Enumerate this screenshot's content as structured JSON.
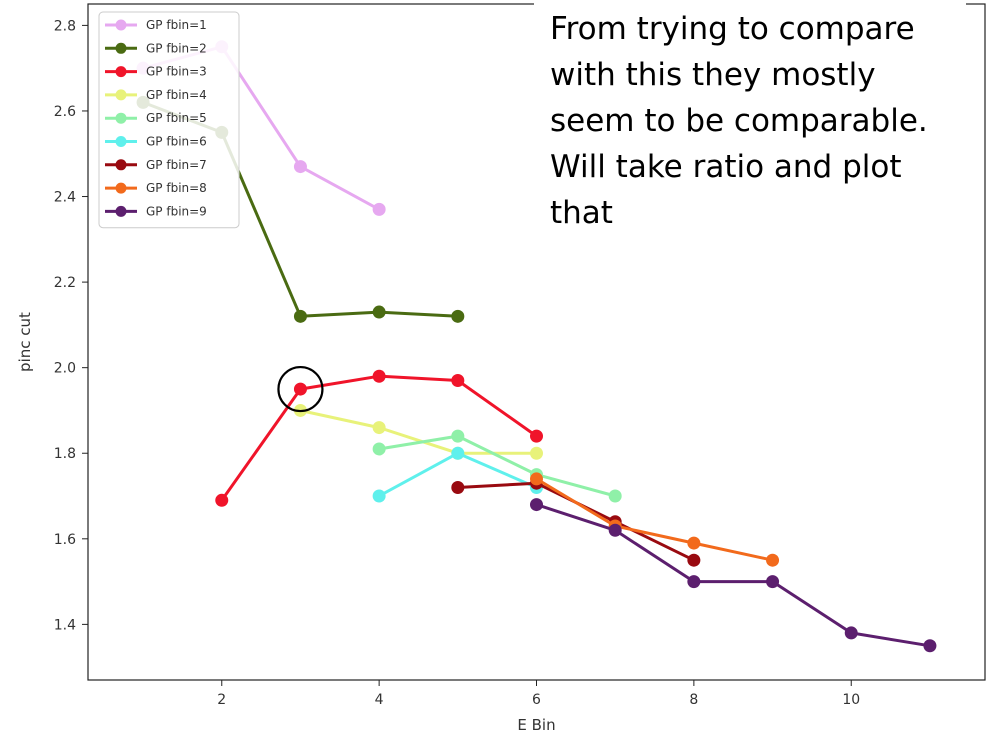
{
  "annotation": {
    "text": "From trying to compare with this they mostly seem to be comparable. Will take ratio and plot that"
  },
  "chart_data": {
    "type": "line",
    "xlabel": "E Bin",
    "ylabel": "pinc cut",
    "xlim": [
      0.3,
      11.7
    ],
    "ylim": [
      1.27,
      2.85
    ],
    "xticks": [
      2,
      4,
      6,
      8,
      10
    ],
    "yticks": [
      1.4,
      1.6,
      1.8,
      2.0,
      2.2,
      2.4,
      2.6,
      2.8
    ],
    "grid": false,
    "legend_position": "top-left",
    "highlight": {
      "shape": "circle",
      "x": 3,
      "y": 1.95
    },
    "series": [
      {
        "name": "GP fbin=1",
        "color": "#e6a8f0",
        "x": [
          1,
          2,
          3,
          4
        ],
        "y": [
          2.7,
          2.75,
          2.47,
          2.37
        ]
      },
      {
        "name": "GP fbin=2",
        "color": "#4a6b12",
        "x": [
          1,
          2,
          3,
          4,
          5
        ],
        "y": [
          2.62,
          2.55,
          2.12,
          2.13,
          2.12
        ]
      },
      {
        "name": "GP fbin=3",
        "color": "#f0142a",
        "x": [
          2,
          3,
          4,
          5,
          6
        ],
        "y": [
          1.69,
          1.95,
          1.98,
          1.97,
          1.84
        ]
      },
      {
        "name": "GP fbin=4",
        "color": "#e8f27a",
        "x": [
          3,
          4,
          5,
          6
        ],
        "y": [
          1.9,
          1.86,
          1.8,
          1.8
        ]
      },
      {
        "name": "GP fbin=5",
        "color": "#8ff0a8",
        "x": [
          4,
          5,
          6,
          7
        ],
        "y": [
          1.81,
          1.84,
          1.75,
          1.7
        ]
      },
      {
        "name": "GP fbin=6",
        "color": "#5ff0ec",
        "x": [
          4,
          5,
          6
        ],
        "y": [
          1.7,
          1.8,
          1.72
        ]
      },
      {
        "name": "GP fbin=7",
        "color": "#990a10",
        "x": [
          5,
          6,
          7,
          8
        ],
        "y": [
          1.72,
          1.73,
          1.64,
          1.55
        ]
      },
      {
        "name": "GP fbin=8",
        "color": "#f26a1c",
        "x": [
          6,
          7,
          8,
          9
        ],
        "y": [
          1.74,
          1.63,
          1.59,
          1.55
        ]
      },
      {
        "name": "GP fbin=9",
        "color": "#5c1f6e",
        "x": [
          6,
          7,
          8,
          9,
          10,
          11
        ],
        "y": [
          1.68,
          1.62,
          1.5,
          1.5,
          1.38,
          1.35
        ]
      }
    ]
  }
}
